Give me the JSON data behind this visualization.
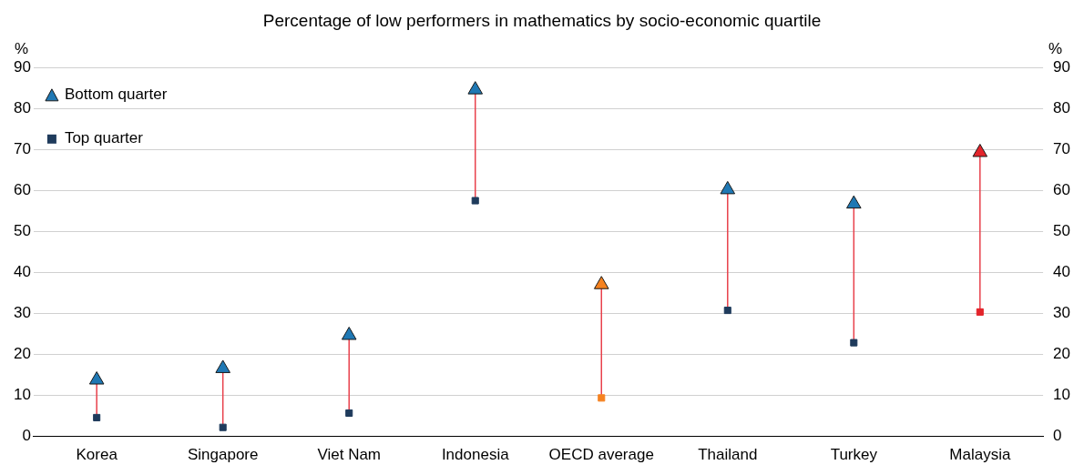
{
  "chart_data": {
    "type": "scatter",
    "title": "Percentage of low performers in mathematics by socio-economic quartile",
    "ylabel": "%",
    "y2label": "%",
    "categories": [
      "Korea",
      "Singapore",
      "Viet Nam",
      "Indonesia",
      "OECD average",
      "Thailand",
      "Turkey",
      "Malaysia"
    ],
    "series": [
      {
        "name": "Bottom quarter",
        "marker": "triangle",
        "color": "#1f78b4",
        "colors": [
          "#1f78b4",
          "#1f78b4",
          "#1f78b4",
          "#1f78b4",
          "#f58220",
          "#1f78b4",
          "#1f78b4",
          "#e3242b"
        ],
        "values": [
          13.8,
          16.6,
          24.7,
          84.7,
          37.1,
          60.3,
          56.8,
          69.4
        ]
      },
      {
        "name": "Top quarter",
        "marker": "square",
        "color": "#1f3b5c",
        "colors": [
          "#1f3b5c",
          "#1f3b5c",
          "#1f3b5c",
          "#1f3b5c",
          "#f58220",
          "#1f3b5c",
          "#1f3b5c",
          "#e3242b"
        ],
        "values": [
          4.6,
          2.2,
          5.7,
          57.6,
          9.4,
          30.8,
          22.9,
          30.4
        ]
      }
    ],
    "ylim": [
      0,
      90
    ],
    "yticks": [
      0,
      10,
      20,
      30,
      40,
      50,
      60,
      70,
      80,
      90
    ],
    "y2lim": [
      0,
      90
    ],
    "y2ticks": [
      0,
      10,
      20,
      30,
      40,
      50,
      60,
      70,
      80,
      90
    ],
    "grid": "y",
    "legend": "top left"
  }
}
